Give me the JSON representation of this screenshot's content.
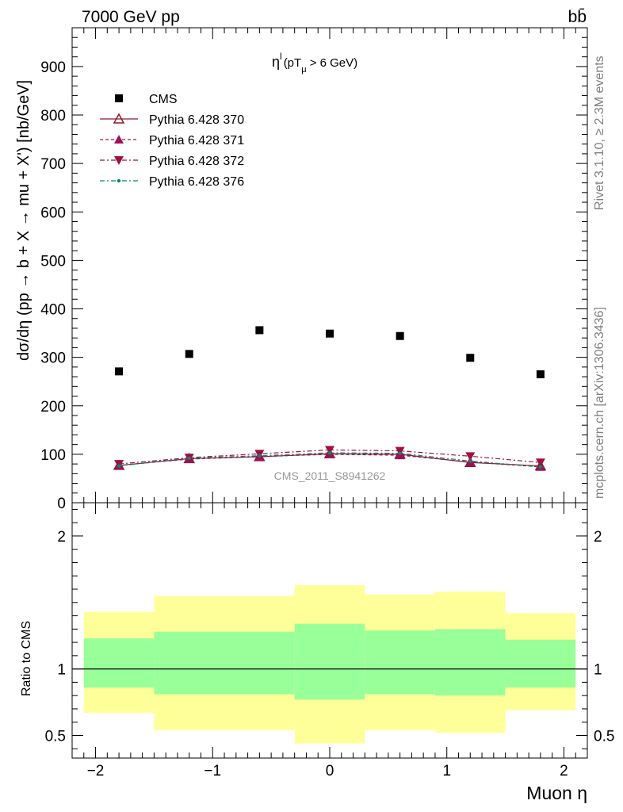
{
  "header": {
    "energy_label": "7000 GeV pp",
    "process_label": "bb̄"
  },
  "side_labels": {
    "rivet": "Rivet 3.1.10, ≥ 2.3M events",
    "source": "mcplots.cern.ch [arXiv:1306.3436]"
  },
  "chart_data": [
    {
      "type": "scatter",
      "panel": "main",
      "title": "ηˡ (pTμ > 6 GeV)",
      "title_parts": {
        "main": "η",
        "sup": "l",
        "open": "(pT",
        "sub": "μ",
        "rest": " >  6 GeV)"
      },
      "ylabel": "dσ/dη (pp → b + X → mu + X') [nb/GeV]",
      "xlabel": "",
      "watermark": "CMS_2011_S8941262",
      "xlim": [
        -2.2,
        2.2
      ],
      "ylim": [
        0,
        980
      ],
      "yticks": [
        0,
        100,
        200,
        300,
        400,
        500,
        600,
        700,
        800,
        900
      ],
      "grid": false,
      "legend_position": "top-left",
      "x": [
        -1.8,
        -1.2,
        -0.6,
        0.0,
        0.6,
        1.2,
        1.8
      ],
      "series": [
        {
          "name": "CMS",
          "values": [
            271,
            307,
            356,
            349,
            344,
            299,
            265
          ],
          "color": "#000000",
          "marker": "square"
        },
        {
          "name": "Pythia 6.428 370",
          "values": [
            77,
            91,
            95,
            101,
            100,
            83,
            76
          ],
          "color": "#8b1a2e",
          "marker": "triangle-up-open",
          "line": "solid"
        },
        {
          "name": "Pythia 6.428 371",
          "values": [
            77,
            90,
            95,
            100,
            98,
            84,
            74
          ],
          "color": "#a0105a",
          "marker": "triangle-up",
          "line": "dashed"
        },
        {
          "name": "Pythia 6.428 372",
          "values": [
            80,
            93,
            101,
            109,
            107,
            96,
            83
          ],
          "color": "#a01040",
          "marker": "triangle-down",
          "line": "dashdot"
        },
        {
          "name": "Pythia 6.428 376",
          "values": [
            76,
            92,
            97,
            103,
            102,
            86,
            74
          ],
          "color": "#008b6b",
          "marker": "dot",
          "line": "dashdot"
        }
      ]
    },
    {
      "type": "area",
      "panel": "ratio",
      "ylabel": "Ratio to CMS",
      "xlabel": "Muon η",
      "xlim": [
        -2.2,
        2.2
      ],
      "ylim": [
        0.33,
        2.25
      ],
      "yticks": [
        0.5,
        1,
        2
      ],
      "xticks": [
        -2,
        -1,
        0,
        1,
        2
      ],
      "bin_edges": [
        -2.1,
        -1.5,
        -0.3,
        0.3,
        0.9,
        1.5,
        2.1
      ],
      "bins": [
        {
          "lo": -2.1,
          "hi": -1.5,
          "green": [
            0.86,
            1.23
          ],
          "yellow": [
            0.67,
            1.43
          ]
        },
        {
          "lo": -1.5,
          "hi": -0.3,
          "green": [
            0.81,
            1.28
          ],
          "yellow": [
            0.54,
            1.55
          ]
        },
        {
          "lo": -0.3,
          "hi": 0.3,
          "green": [
            0.77,
            1.34
          ],
          "yellow": [
            0.44,
            1.63
          ]
        },
        {
          "lo": 0.3,
          "hi": 0.9,
          "green": [
            0.81,
            1.29
          ],
          "yellow": [
            0.54,
            1.56
          ]
        },
        {
          "lo": 0.9,
          "hi": 1.5,
          "green": [
            0.8,
            1.3
          ],
          "yellow": [
            0.52,
            1.58
          ]
        },
        {
          "lo": 1.5,
          "hi": 2.1,
          "green": [
            0.86,
            1.22
          ],
          "yellow": [
            0.69,
            1.42
          ]
        }
      ],
      "band_colors": {
        "green": "#99ff99",
        "yellow": "#ffff99"
      },
      "reference_line": 1
    }
  ]
}
